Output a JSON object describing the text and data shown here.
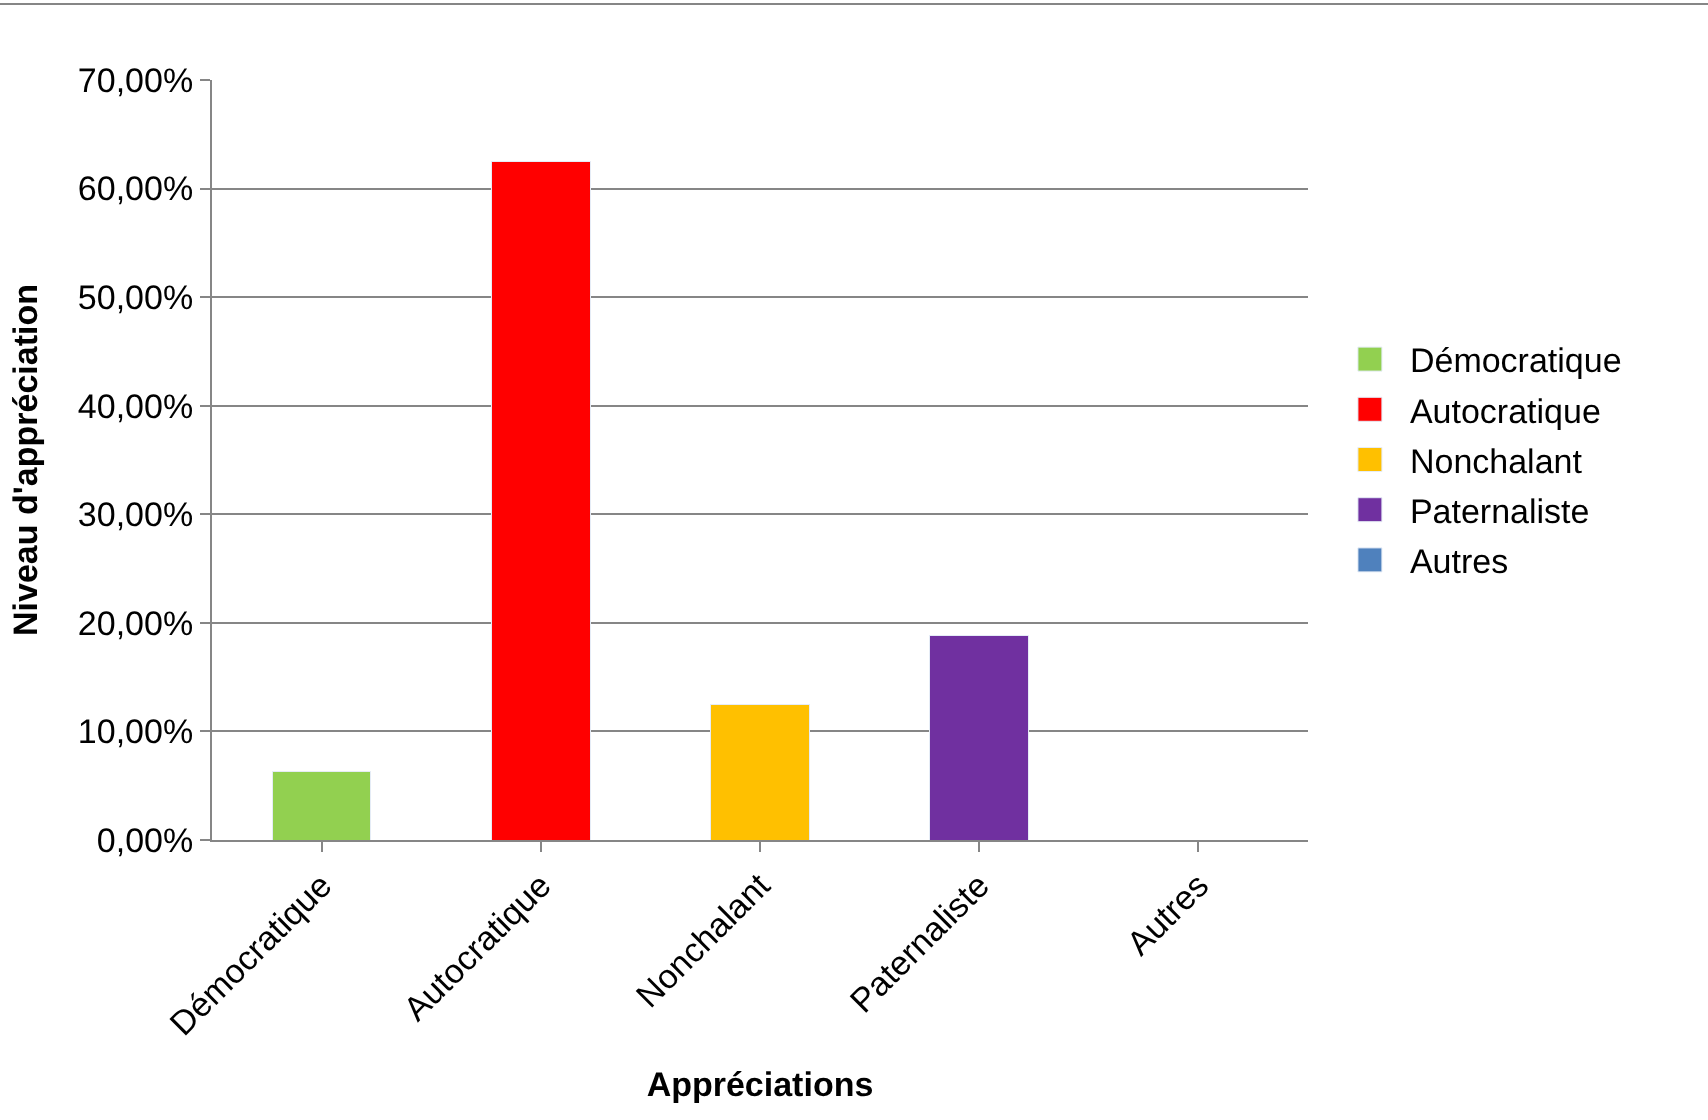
{
  "chart_data": {
    "type": "bar",
    "xlabel": "Appréciations",
    "ylabel": "Niveau d'appréciation",
    "categories": [
      "Démocratique",
      "Autocratique",
      "Nonchalant",
      "Paternaliste",
      "Autres"
    ],
    "series": [
      {
        "name": "Démocratique",
        "color": "#92d050",
        "values": [
          6.3,
          null,
          null,
          null,
          null
        ]
      },
      {
        "name": "Autocratique",
        "color": "#ff0000",
        "values": [
          null,
          62.5,
          null,
          null,
          null
        ]
      },
      {
        "name": "Nonchalant",
        "color": "#ffc000",
        "values": [
          null,
          null,
          12.5,
          null,
          null
        ]
      },
      {
        "name": "Paternaliste",
        "color": "#7030a0",
        "values": [
          null,
          null,
          null,
          18.8,
          null
        ]
      },
      {
        "name": "Autres",
        "color": "#4f81bd",
        "values": [
          null,
          null,
          null,
          null,
          null
        ]
      }
    ],
    "ylim": [
      0,
      70
    ],
    "yticks": [
      {
        "value": 0,
        "label": "0,00%"
      },
      {
        "value": 10,
        "label": "10,00%"
      },
      {
        "value": 20,
        "label": "20,00%"
      },
      {
        "value": 30,
        "label": "30,00%"
      },
      {
        "value": 40,
        "label": "40,00%"
      },
      {
        "value": 50,
        "label": "50,00%"
      },
      {
        "value": 60,
        "label": "60,00%"
      },
      {
        "value": 70,
        "label": "70,00%"
      }
    ],
    "grid": "y",
    "legend": "right",
    "stacked": true
  }
}
